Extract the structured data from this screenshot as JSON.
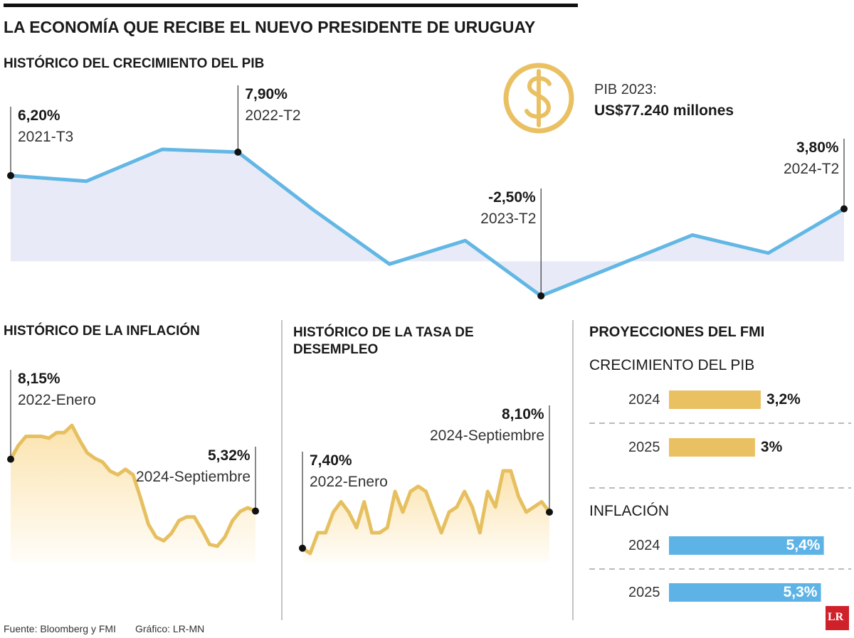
{
  "header": {
    "title": "LA ECONOMÍA QUE RECIBE EL NUEVO PRESIDENTE DE URUGUAY"
  },
  "pib_2023": {
    "label": "PIB 2023:",
    "value": "US$77.240 millones"
  },
  "fmi_title": "PROYECCIONES DEL FMI",
  "chart_data": [
    {
      "type": "area-line",
      "title": "HISTÓRICO DEL CRECIMIENTO DEL PIB",
      "color": "#62b7e4",
      "fill": "#e8ebf7",
      "categories": [
        "2021-T3",
        null,
        null,
        "2022-T2",
        null,
        null,
        null,
        "2023-T2",
        null,
        null,
        null,
        "2024-T2"
      ],
      "values": [
        6.2,
        5.8,
        8.1,
        7.9,
        3.7,
        -0.2,
        1.5,
        -2.5,
        -0.3,
        1.9,
        0.6,
        3.8
      ],
      "value_labels": [
        "6,20%",
        null,
        null,
        "7,90%",
        null,
        null,
        null,
        "-2,50%",
        null,
        null,
        null,
        "3,80%"
      ]
    },
    {
      "type": "area-line",
      "title": "HISTÓRICO DE LA INFLACIÓN",
      "color": "#e6c060",
      "fill": "#fbe3ae",
      "categories": [
        "2022-Enero",
        null,
        null,
        null,
        null,
        null,
        null,
        null,
        null,
        null,
        null,
        null,
        null,
        null,
        null,
        null,
        null,
        null,
        null,
        null,
        null,
        null,
        null,
        null,
        null,
        null,
        null,
        null,
        null,
        null,
        null,
        null,
        "2024-Septiembre"
      ],
      "values": [
        8.15,
        8.9,
        9.4,
        9.4,
        9.4,
        9.3,
        9.6,
        9.6,
        10.0,
        9.2,
        8.5,
        8.2,
        8.0,
        7.5,
        7.3,
        7.6,
        7.3,
        6.0,
        4.6,
        3.9,
        3.7,
        4.1,
        4.8,
        5.0,
        5.0,
        4.3,
        3.5,
        3.4,
        3.9,
        4.8,
        5.3,
        5.5,
        5.32
      ],
      "value_labels": [
        "8,15%",
        null,
        null,
        null,
        null,
        null,
        null,
        null,
        null,
        null,
        null,
        null,
        null,
        null,
        null,
        null,
        null,
        null,
        null,
        null,
        null,
        null,
        null,
        null,
        null,
        null,
        null,
        null,
        null,
        null,
        null,
        null,
        "5,32%"
      ]
    },
    {
      "type": "area-line",
      "title": "HISTÓRICO DE LA TASA DE DESEMPLEO",
      "color": "#e6c060",
      "fill": "#fbe3ae",
      "categories": [
        "2022-Enero",
        null,
        null,
        null,
        null,
        null,
        null,
        null,
        null,
        null,
        null,
        null,
        null,
        null,
        null,
        null,
        null,
        null,
        null,
        null,
        null,
        null,
        null,
        null,
        null,
        null,
        null,
        null,
        null,
        null,
        null,
        null,
        "2024-Septiembre"
      ],
      "values": [
        7.4,
        7.3,
        7.7,
        7.7,
        8.1,
        8.3,
        8.1,
        7.8,
        8.3,
        7.7,
        7.7,
        7.8,
        8.5,
        8.1,
        8.5,
        8.6,
        8.5,
        8.1,
        7.7,
        8.1,
        8.2,
        8.5,
        8.2,
        7.7,
        8.5,
        8.2,
        8.9,
        8.9,
        8.4,
        8.1,
        8.2,
        8.3,
        8.1
      ],
      "value_labels": [
        "7,40%",
        null,
        null,
        null,
        null,
        null,
        null,
        null,
        null,
        null,
        null,
        null,
        null,
        null,
        null,
        null,
        null,
        null,
        null,
        null,
        null,
        null,
        null,
        null,
        null,
        null,
        null,
        null,
        null,
        null,
        null,
        null,
        "8,10%"
      ]
    },
    {
      "type": "hbar",
      "title": "CRECIMIENTO DEL PIB",
      "color": "#e9c163",
      "label_position": "outside",
      "categories": [
        "2024",
        "2025"
      ],
      "values": [
        3.2,
        3
      ],
      "value_labels": [
        "3,2%",
        "3%"
      ]
    },
    {
      "type": "hbar",
      "title": "INFLACIÓN",
      "color": "#5db3e6",
      "label_position": "inside",
      "categories": [
        "2024",
        "2025"
      ],
      "values": [
        5.4,
        5.3
      ],
      "value_labels": [
        "5,4%",
        "5,3%"
      ]
    }
  ],
  "footer": {
    "source": "Fuente: Bloomberg y FMI",
    "credit": "Gráfico: LR-MN"
  },
  "logo": "LR"
}
